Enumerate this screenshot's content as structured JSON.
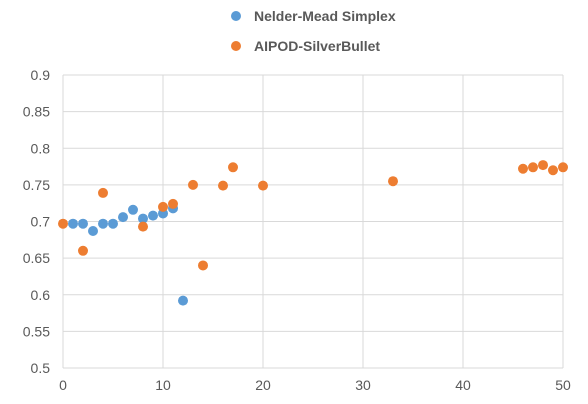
{
  "chart_data": {
    "type": "scatter",
    "title": "",
    "xlabel": "",
    "ylabel": "",
    "xlim": [
      0,
      50
    ],
    "ylim": [
      0.5,
      0.9
    ],
    "x_ticks": [
      0,
      10,
      20,
      30,
      40,
      50
    ],
    "y_ticks": [
      0.5,
      0.55,
      0.6,
      0.65,
      0.7,
      0.75,
      0.8,
      0.85,
      0.9
    ],
    "x_tick_labels": [
      "0",
      "10",
      "20",
      "30",
      "40",
      "50"
    ],
    "y_tick_labels": [
      "0.5",
      "0.55",
      "0.6",
      "0.65",
      "0.7",
      "0.75",
      "0.8",
      "0.85",
      "0.9"
    ],
    "grid": true,
    "legend_position": "top",
    "series": [
      {
        "name": "Nelder-Mead Simplex",
        "color": "#5b9bd5",
        "points": [
          {
            "x": 1,
            "y": 0.697
          },
          {
            "x": 2,
            "y": 0.697
          },
          {
            "x": 3,
            "y": 0.687
          },
          {
            "x": 4,
            "y": 0.697
          },
          {
            "x": 5,
            "y": 0.697
          },
          {
            "x": 6,
            "y": 0.706
          },
          {
            "x": 7,
            "y": 0.716
          },
          {
            "x": 8,
            "y": 0.704
          },
          {
            "x": 9,
            "y": 0.708
          },
          {
            "x": 10,
            "y": 0.711
          },
          {
            "x": 11,
            "y": 0.718
          },
          {
            "x": 12,
            "y": 0.592
          }
        ]
      },
      {
        "name": "AIPOD-SilverBullet",
        "color": "#ed7d31",
        "points": [
          {
            "x": 0,
            "y": 0.697
          },
          {
            "x": 2,
            "y": 0.66
          },
          {
            "x": 4,
            "y": 0.739
          },
          {
            "x": 8,
            "y": 0.693
          },
          {
            "x": 10,
            "y": 0.72
          },
          {
            "x": 11,
            "y": 0.724
          },
          {
            "x": 13,
            "y": 0.75
          },
          {
            "x": 14,
            "y": 0.64
          },
          {
            "x": 16,
            "y": 0.749
          },
          {
            "x": 17,
            "y": 0.774
          },
          {
            "x": 20,
            "y": 0.749
          },
          {
            "x": 33,
            "y": 0.755
          },
          {
            "x": 46,
            "y": 0.772
          },
          {
            "x": 47,
            "y": 0.774
          },
          {
            "x": 48,
            "y": 0.777
          },
          {
            "x": 49,
            "y": 0.77
          },
          {
            "x": 50,
            "y": 0.774
          }
        ]
      }
    ]
  }
}
